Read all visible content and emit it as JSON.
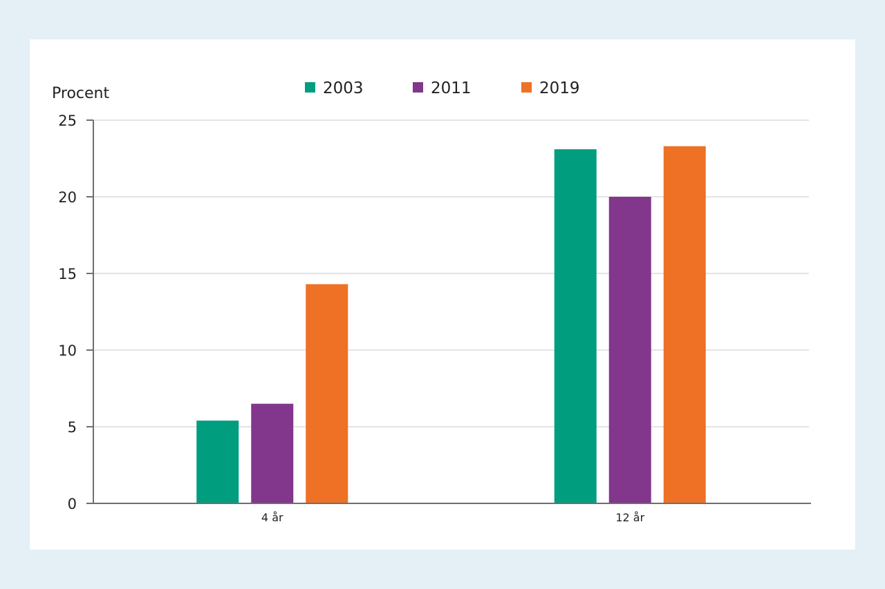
{
  "chart_data": {
    "type": "bar",
    "ylabel": "Procent",
    "categories": [
      "4 år",
      "12 år"
    ],
    "ylim": [
      0,
      25
    ],
    "yticks": [
      0,
      5,
      10,
      15,
      20,
      25
    ],
    "grid": true,
    "legend_position": "top-center",
    "series": [
      {
        "name": "2003",
        "color": "#009e7f",
        "values": [
          5.4,
          23.1
        ]
      },
      {
        "name": "2011",
        "color": "#82368c",
        "values": [
          6.5,
          20.0
        ]
      },
      {
        "name": "2019",
        "color": "#ee7125",
        "values": [
          14.3,
          23.3
        ]
      }
    ]
  }
}
